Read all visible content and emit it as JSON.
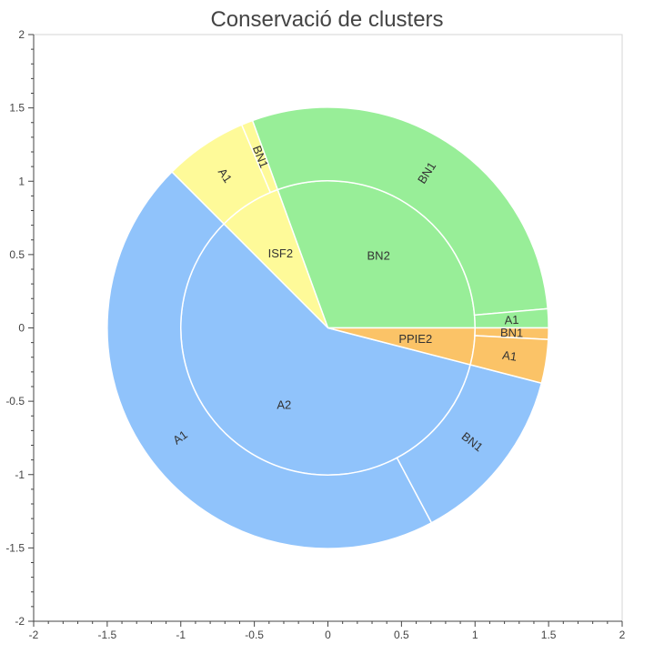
{
  "chart_data": {
    "type": "pie",
    "title": "Conservació de clusters",
    "xlim": [
      -2,
      2
    ],
    "ylim": [
      -2,
      2
    ],
    "x_ticks": [
      "-2",
      "-1.5",
      "-1",
      "-0.5",
      "0",
      "0.5",
      "1",
      "1.5",
      "2"
    ],
    "y_ticks": [
      "2",
      "1.5",
      "1",
      "0.5",
      "0",
      "-0.5",
      "-1",
      "-1.5",
      "-2"
    ],
    "inner_ring": {
      "radius": 1.0,
      "segments": [
        {
          "label": "BN2",
          "start_deg": 0,
          "end_deg": 110,
          "color": "#98ee98"
        },
        {
          "label": "ISF2",
          "start_deg": 110,
          "end_deg": 135,
          "color": "#fefa99"
        },
        {
          "label": "A2",
          "start_deg": 135,
          "end_deg": 345.5,
          "color": "#90c3fb"
        },
        {
          "label": "PPIE2",
          "start_deg": 345.5,
          "end_deg": 360,
          "color": "#fbc367"
        }
      ]
    },
    "outer_ring": {
      "inner_radius": 1.0,
      "outer_radius": 1.5,
      "segments": [
        {
          "label": "BN1",
          "start_deg": 5,
          "end_deg": 110,
          "color": "#98ee98"
        },
        {
          "label": "A1",
          "start_deg": 0,
          "end_deg": 5,
          "color": "#98ee98"
        },
        {
          "label": "A1",
          "start_deg": 113,
          "end_deg": 135,
          "color": "#fefa99"
        },
        {
          "label": "BN1",
          "start_deg": 110,
          "end_deg": 113,
          "color": "#fefa99"
        },
        {
          "label": "A1",
          "start_deg": 135,
          "end_deg": 298,
          "color": "#90c3fb"
        },
        {
          "label": "BN1",
          "start_deg": 298,
          "end_deg": 345.5,
          "color": "#90c3fb"
        },
        {
          "label": "BN1",
          "start_deg": 357,
          "end_deg": 360,
          "color": "#fbc367"
        },
        {
          "label": "A1",
          "start_deg": 345.5,
          "end_deg": 357,
          "color": "#fbc367"
        }
      ]
    }
  }
}
